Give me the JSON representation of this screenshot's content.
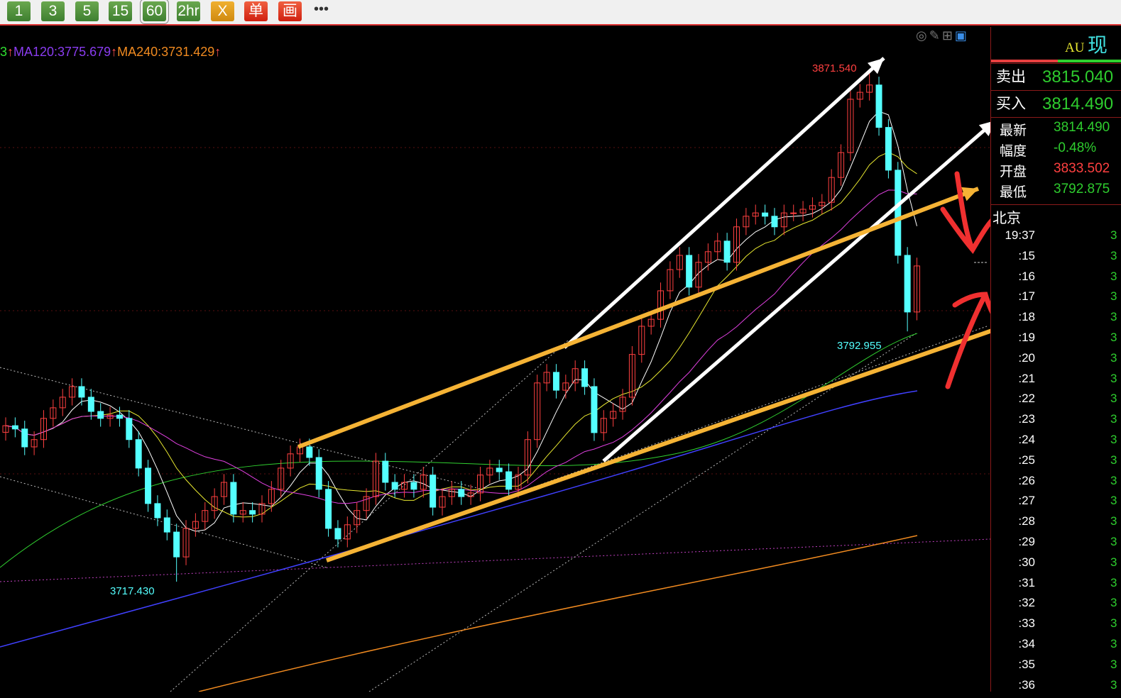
{
  "toolbar": {
    "buttons": [
      {
        "label": "1"
      },
      {
        "label": "3"
      },
      {
        "label": "5"
      },
      {
        "label": "15"
      },
      {
        "label": "60",
        "selected": true
      },
      {
        "label": "2hr"
      },
      {
        "label": "X"
      },
      {
        "label": "单"
      },
      {
        "label": "画"
      }
    ],
    "more": "•••"
  },
  "legend": {
    "lead": "3",
    "arrow": "↑",
    "ma120": "MA120:3775.679",
    "ma240": "MA240:3731.429",
    "colors": {
      "ma120": "#8a3cf0",
      "ma240": "#f08a20",
      "arrow": "#ff5050"
    }
  },
  "chart_tools": [
    "eye-off-icon",
    "pencil-icon",
    "grid-icon",
    "panel-toggle-icon"
  ],
  "chart": {
    "labels": {
      "high": "3871.540",
      "low_left": "3717.430",
      "low_right": "3792.955"
    },
    "closes": [
      3764.5,
      3763.5,
      3758.1,
      3760.3,
      3766.7,
      3769.9,
      3773.1,
      3776.3,
      3773.1,
      3768.8,
      3766.7,
      3767.7,
      3766.7,
      3760.3,
      3751.7,
      3741.0,
      3736.7,
      3732.4,
      3724.9,
      3733.5,
      3735.6,
      3738.9,
      3743.1,
      3747.4,
      3737.8,
      3738.9,
      3737.8,
      3741.0,
      3745.3,
      3751.7,
      3756.0,
      3758.1,
      3754.9,
      3745.3,
      3733.5,
      3730.3,
      3734.6,
      3738.9,
      3743.1,
      3753.8,
      3747.4,
      3745.3,
      3747.4,
      3745.3,
      3749.6,
      3739.9,
      3743.1,
      3745.3,
      3743.1,
      3744.2,
      3749.6,
      3751.7,
      3750.6,
      3745.3,
      3749.6,
      3760.3,
      3777.4,
      3780.6,
      3775.2,
      3777.4,
      3781.7,
      3776.3,
      3762.4,
      3766.7,
      3768.8,
      3773.1,
      3786.0,
      3794.5,
      3796.6,
      3805.2,
      3811.6,
      3815.9,
      3806.3,
      3813.8,
      3817.0,
      3820.2,
      3813.8,
      3824.5,
      3827.7,
      3828.7,
      3827.7,
      3824.5,
      3828.7,
      3828.7,
      3829.8,
      3830.9,
      3831.9,
      3839.4,
      3846.9,
      3863.0,
      3865.1,
      3867.3,
      3854.5,
      3841.6,
      3815.9,
      3798.8,
      3812.7
    ],
    "high": 3871.54,
    "low": 3717.43,
    "colors": {
      "up": "#ff4040",
      "down": "#54ffff",
      "ma5": "#ffffff",
      "ma10": "#e8e830",
      "ma20": "#e040e0",
      "ma60": "#30d030",
      "ma120": "#4040ff",
      "ma240": "#f08a20"
    }
  },
  "panel": {
    "symbol": "AU",
    "name": "现",
    "sell": {
      "label": "卖出",
      "value": "3815.040"
    },
    "buy": {
      "label": "买入",
      "value": "3814.490"
    },
    "stats": [
      {
        "label": "最新",
        "value": "3814.490",
        "color": "#2ecc2e"
      },
      {
        "label": "幅度",
        "value": "-0.48%",
        "color": "#2ecc2e"
      },
      {
        "label": "开盘",
        "value": "3833.502",
        "color": "#ff4040"
      },
      {
        "label": "最低",
        "value": "3792.875",
        "color": "#2ecc2e"
      }
    ],
    "city": "北京",
    "times": [
      "19:37",
      ":15",
      ":16",
      ":17",
      ":18",
      ":19",
      ":20",
      ":21",
      ":22",
      ":23",
      ":24",
      ":25",
      ":26",
      ":27",
      ":28",
      ":29",
      ":30",
      ":31",
      ":32",
      ":33",
      ":34",
      ":35",
      ":36"
    ],
    "time_value": "3"
  }
}
